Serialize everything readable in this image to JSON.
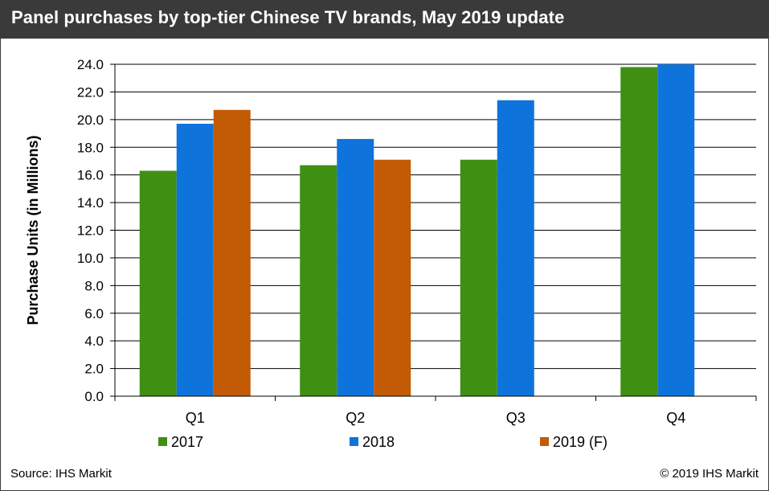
{
  "title": "Panel purchases by top-tier Chinese TV brands, May 2019 update",
  "footer": {
    "source": "Source: IHS Markit",
    "copyright": "© 2019 IHS Markit"
  },
  "chart_data": {
    "type": "bar",
    "categories": [
      "Q1",
      "Q2",
      "Q3",
      "Q4"
    ],
    "series": [
      {
        "name": "2017",
        "color": "#3f8f13",
        "values": [
          16.3,
          16.7,
          17.1,
          23.8
        ]
      },
      {
        "name": "2018",
        "color": "#0f73dc",
        "values": [
          19.7,
          18.6,
          21.4,
          24.0
        ]
      },
      {
        "name": "2019 (F)",
        "color": "#c25a06",
        "values": [
          20.7,
          17.1,
          null,
          null
        ]
      }
    ],
    "ylabel": "Purchase Units (in Millions)",
    "xlabel": "",
    "ylim": [
      0,
      24
    ],
    "yticks": [
      "0.0",
      "2.0",
      "4.0",
      "6.0",
      "8.0",
      "10.0",
      "12.0",
      "14.0",
      "16.0",
      "18.0",
      "20.0",
      "22.0",
      "24.0"
    ],
    "grid": true,
    "legend": "bottom"
  }
}
